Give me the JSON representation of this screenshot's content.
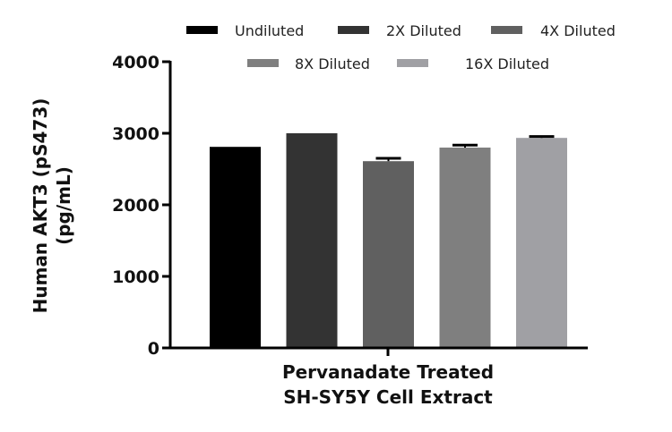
{
  "chart_data": {
    "type": "bar",
    "title": "",
    "xlabel": "Pervanadate Treated SH-SY5Y Cell Extract",
    "xlabel_lines": [
      "Pervanadate Treated",
      "SH-SY5Y Cell Extract"
    ],
    "ylabel": "Human AKT3 (pS473) (pg/mL)",
    "ylabel_lines": [
      "Human AKT3 (pS473)",
      "(pg/mL)"
    ],
    "ylim": [
      0,
      4000
    ],
    "yticks": [
      0,
      1000,
      2000,
      3000,
      4000
    ],
    "grid": false,
    "legend_position": "top",
    "categories": [
      "Pervanadate Treated SH-SY5Y Cell Extract"
    ],
    "series": [
      {
        "name": "Undiluted",
        "values": [
          2810
        ],
        "error": [
          0
        ],
        "color": "#000000"
      },
      {
        "name": "2X Diluted",
        "values": [
          3000
        ],
        "error": [
          0
        ],
        "color": "#333333"
      },
      {
        "name": "4X Diluted",
        "values": [
          2610
        ],
        "error": [
          40
        ],
        "color": "#606060"
      },
      {
        "name": "8X Diluted",
        "values": [
          2800
        ],
        "error": [
          35
        ],
        "color": "#7f7f7f"
      },
      {
        "name": "16X Diluted",
        "values": [
          2935
        ],
        "error": [
          20
        ],
        "color": "#a0a0a4"
      }
    ]
  },
  "legend": {
    "items": [
      {
        "label": "Undiluted",
        "color": "#000000"
      },
      {
        "label": "2X Diluted",
        "color": "#333333"
      },
      {
        "label": "4X Diluted",
        "color": "#606060"
      },
      {
        "label": "8X Diluted",
        "color": "#7f7f7f"
      },
      {
        "label": "16X Diluted",
        "color": "#a0a0a4"
      }
    ]
  },
  "axes": {
    "y_tick_labels": [
      "0",
      "1000",
      "2000",
      "3000",
      "4000"
    ],
    "y_title_line1": "Human AKT3 (pS473)",
    "y_title_line2": "(pg/mL)",
    "x_title_line1": "Pervanadate Treated",
    "x_title_line2": "SH-SY5Y Cell Extract"
  }
}
